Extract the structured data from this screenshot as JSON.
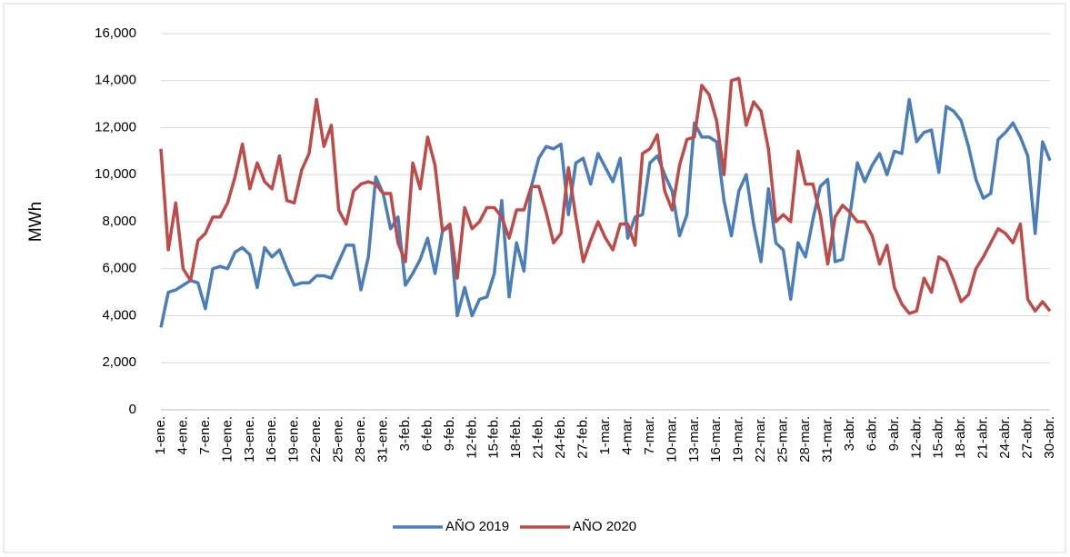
{
  "chart_data": {
    "type": "line",
    "y_label": "MWh",
    "categories": [
      "1-ene.",
      null,
      null,
      "4-ene.",
      null,
      null,
      "7-ene.",
      null,
      null,
      "10-ene.",
      null,
      null,
      "13-ene.",
      null,
      null,
      "16-ene.",
      null,
      null,
      "19-ene.",
      null,
      null,
      "22-ene.",
      null,
      null,
      "25-ene.",
      null,
      null,
      "28-ene.",
      null,
      null,
      "31-ene.",
      null,
      null,
      "3-feb.",
      null,
      null,
      "6-feb.",
      null,
      null,
      "9-feb.",
      null,
      null,
      "12-feb.",
      null,
      null,
      "15-feb.",
      null,
      null,
      "18-feb.",
      null,
      null,
      "21-feb.",
      null,
      null,
      "24-feb.",
      null,
      null,
      "27-feb.",
      null,
      null,
      "1-mar.",
      null,
      null,
      "4-mar.",
      null,
      null,
      "7-mar.",
      null,
      null,
      "10-mar.",
      null,
      null,
      "13-mar.",
      null,
      null,
      "16-mar.",
      null,
      null,
      "19-mar.",
      null,
      null,
      "22-mar.",
      null,
      null,
      "25-mar.",
      null,
      null,
      "28-mar.",
      null,
      null,
      "31-mar.",
      null,
      null,
      "3-abr.",
      null,
      null,
      "6-abr.",
      null,
      null,
      "9-abr.",
      null,
      null,
      "12-abr.",
      null,
      null,
      "15-abr.",
      null,
      null,
      "18-abr.",
      null,
      null,
      "21-abr.",
      null,
      null,
      "24-abr.",
      null,
      null,
      "27-abr.",
      null,
      null,
      "30-abr."
    ],
    "series": [
      {
        "name": "AÑO 2019",
        "color": "#4a7ebb",
        "values": [
          3500,
          5000,
          5100,
          5300,
          5500,
          5400,
          4300,
          6000,
          6100,
          6000,
          6700,
          6900,
          6600,
          5200,
          6900,
          6500,
          6800,
          6000,
          5300,
          5400,
          5400,
          5700,
          5700,
          5600,
          6300,
          7000,
          7000,
          5100,
          6500,
          9900,
          9200,
          7700,
          8200,
          5300,
          5800,
          6400,
          7300,
          5800,
          7600,
          7800,
          4000,
          5200,
          4000,
          4700,
          4800,
          5800,
          8900,
          4800,
          7100,
          5900,
          9500,
          10700,
          11200,
          11100,
          11300,
          8300,
          10500,
          10700,
          9600,
          10900,
          10300,
          9700,
          10700,
          7300,
          8200,
          8300,
          10500,
          10800,
          10000,
          9300,
          7400,
          8300,
          12200,
          11600,
          11600,
          11400,
          8900,
          7400,
          9300,
          10000,
          7900,
          6300,
          9400,
          7100,
          6800,
          4700,
          7100,
          6500,
          8100,
          9500,
          9800,
          6300,
          6400,
          8300,
          10500,
          9700,
          10400,
          10900,
          10000,
          11000,
          10900,
          13200,
          11400,
          11800,
          11900,
          10100,
          12900,
          12700,
          12300,
          11200,
          9800,
          9000,
          9200,
          11500,
          11800,
          12200,
          11600,
          10800,
          7500,
          11400,
          10600
        ]
      },
      {
        "name": "AÑO 2020",
        "color": "#be4b48",
        "values": [
          11100,
          6800,
          8800,
          6000,
          5500,
          7200,
          7500,
          8200,
          8200,
          8800,
          9900,
          11300,
          9400,
          10500,
          9700,
          9400,
          10800,
          8900,
          8800,
          10200,
          10900,
          13200,
          11200,
          12100,
          8500,
          7900,
          9300,
          9600,
          9700,
          9600,
          9200,
          9200,
          7100,
          6300,
          10500,
          9400,
          11600,
          10400,
          7600,
          7900,
          5600,
          8600,
          7700,
          8000,
          8600,
          8600,
          8200,
          7300,
          8500,
          8500,
          9500,
          9500,
          8400,
          7100,
          7500,
          10300,
          8200,
          6300,
          7200,
          8000,
          7300,
          6800,
          7900,
          7900,
          7000,
          10900,
          11100,
          11700,
          9300,
          8500,
          10400,
          11500,
          11600,
          13800,
          13400,
          12300,
          10000,
          14000,
          14100,
          12100,
          13100,
          12700,
          11100,
          8000,
          8300,
          8000,
          11000,
          9600,
          9600,
          8300,
          6200,
          8200,
          8700,
          8400,
          8000,
          8000,
          7400,
          6200,
          7000,
          5200,
          4500,
          4100,
          4200,
          5600,
          5000,
          6500,
          6300,
          5500,
          4600,
          4900,
          6000,
          6500,
          7100,
          7700,
          7500,
          7100,
          7900,
          4700,
          4200,
          4600,
          4200
        ]
      }
    ],
    "ylim": [
      0,
      16000
    ],
    "yticks": [
      0,
      {
        "value": 2000,
        "label": "2,000"
      },
      {
        "value": 4000,
        "label": "4,000"
      },
      {
        "value": 6000,
        "label": "6,000"
      },
      {
        "value": 8000,
        "label": "8,000"
      },
      {
        "value": 10000,
        "label": "10,000"
      },
      {
        "value": 12000,
        "label": "12,000"
      },
      {
        "value": 14000,
        "label": "14,000"
      },
      {
        "value": 16000,
        "label": "16,000"
      }
    ],
    "grid": true,
    "legend": "bottom"
  }
}
